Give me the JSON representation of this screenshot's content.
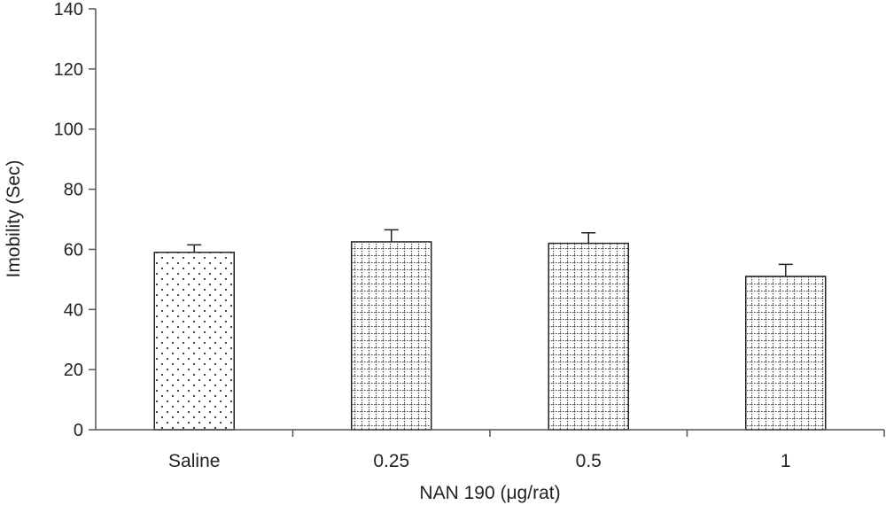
{
  "chart_data": {
    "type": "bar",
    "title": "",
    "xlabel": "NAN 190 (μg/rat)",
    "ylabel": "Imobility (Sec)",
    "ylim": [
      0,
      140
    ],
    "yticks": [
      "0",
      "20",
      "40",
      "60",
      "80",
      "100",
      "120",
      "140"
    ],
    "categories": [
      "Saline",
      "0.25",
      "0.5",
      "1"
    ],
    "values": [
      59,
      62.5,
      62,
      51
    ],
    "errors": [
      2.5,
      4,
      3.5,
      4
    ],
    "patterns": [
      "dots",
      "grid",
      "grid",
      "grid"
    ],
    "grid": false,
    "legend": "none"
  }
}
